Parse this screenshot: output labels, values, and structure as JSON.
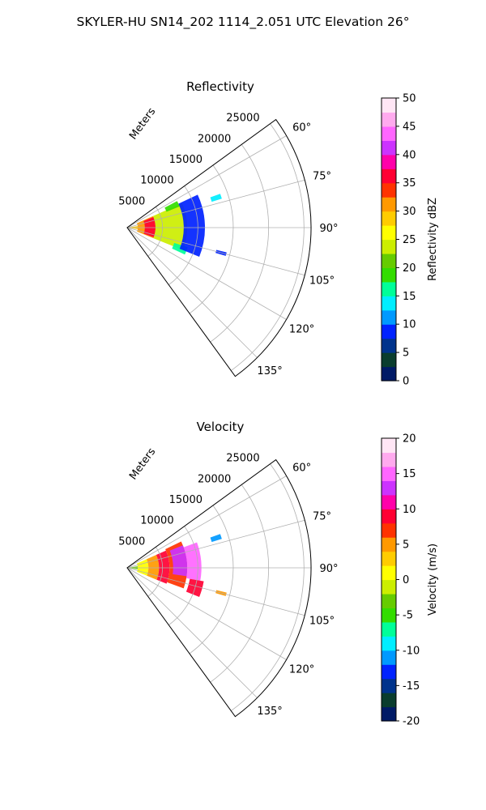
{
  "figure": {
    "suptitle": "SKYLER-HU  SN14_202  1114_2.051 UTC Elevation 26°"
  },
  "chart_data": [
    {
      "type": "polar-sector",
      "title": "Reflectivity",
      "radial_label": "Meters",
      "radial_ticks": [
        "5000",
        "10000",
        "15000",
        "20000",
        "25000"
      ],
      "r_max": 26000,
      "theta_range_deg": [
        54,
        144
      ],
      "angle_ticks": [
        {
          "deg": 60,
          "label": "60°"
        },
        {
          "deg": 75,
          "label": "75°"
        },
        {
          "deg": 90,
          "label": "90°"
        },
        {
          "deg": 105,
          "label": "105°"
        },
        {
          "deg": 120,
          "label": "120°"
        },
        {
          "deg": 135,
          "label": "135°"
        }
      ],
      "colorbar": {
        "label": "Reflectivity dBZ",
        "ticks": [
          "0",
          "5",
          "10",
          "15",
          "20",
          "25",
          "30",
          "35",
          "40",
          "45",
          "50"
        ],
        "min": 0,
        "max": 50,
        "stops": [
          "#001a66",
          "#0a3d2e",
          "#00338c",
          "#0022ff",
          "#0099ff",
          "#00eeff",
          "#00ff99",
          "#33dd00",
          "#66cc00",
          "#ccee00",
          "#ffff00",
          "#ffcc00",
          "#ff9900",
          "#ff3300",
          "#ff0033",
          "#ff00aa",
          "#cc33ff",
          "#ff66ff",
          "#ffaaee",
          "#ffe6f5"
        ]
      },
      "echo_bands": [
        {
          "r0": 0,
          "r1": 1500,
          "a0": 82,
          "a1": 98,
          "value": 28
        },
        {
          "r0": 1500,
          "r1": 4000,
          "a0": 66,
          "a1": 112,
          "value": 30
        },
        {
          "r0": 2500,
          "r1": 4000,
          "a0": 68,
          "a1": 110,
          "value": 36
        },
        {
          "r0": 4000,
          "r1": 8500,
          "a0": 66,
          "a1": 112,
          "value": 23
        },
        {
          "r0": 6000,
          "r1": 8000,
          "a0": 62,
          "a1": 68,
          "value": 18
        },
        {
          "r0": 7000,
          "r1": 9000,
          "a0": 108,
          "a1": 115,
          "value": 17
        },
        {
          "r0": 8000,
          "r1": 11000,
          "a0": 65,
          "a1": 112,
          "value": 9
        },
        {
          "r0": 12500,
          "r1": 14000,
          "a0": 70,
          "a1": 73,
          "value": 14
        },
        {
          "r0": 13000,
          "r1": 14500,
          "a0": 104,
          "a1": 106,
          "value": 9
        }
      ]
    },
    {
      "type": "polar-sector",
      "title": "Velocity",
      "radial_label": "Meters",
      "radial_ticks": [
        "5000",
        "10000",
        "15000",
        "20000",
        "25000"
      ],
      "r_max": 26000,
      "theta_range_deg": [
        54,
        144
      ],
      "angle_ticks": [
        {
          "deg": 60,
          "label": "60°"
        },
        {
          "deg": 75,
          "label": "75°"
        },
        {
          "deg": 90,
          "label": "90°"
        },
        {
          "deg": 105,
          "label": "105°"
        },
        {
          "deg": 120,
          "label": "120°"
        },
        {
          "deg": 135,
          "label": "135°"
        }
      ],
      "colorbar": {
        "label": "Velocity (m/s)",
        "ticks": [
          "-20",
          "-15",
          "-10",
          "-5",
          "0",
          "5",
          "10",
          "15",
          "20"
        ],
        "min": -20,
        "max": 20,
        "stops": [
          "#001a66",
          "#0a3d2e",
          "#00338c",
          "#0022ff",
          "#0099ff",
          "#00eeff",
          "#00ff99",
          "#33dd00",
          "#66cc00",
          "#ccee00",
          "#ffff00",
          "#ffcc00",
          "#ff9900",
          "#ff3300",
          "#ff0033",
          "#ff00aa",
          "#cc33ff",
          "#ff66ff",
          "#ffaaee",
          "#ffe6f5"
        ]
      },
      "echo_bands": [
        {
          "r0": 0,
          "r1": 1500,
          "a0": 82,
          "a1": 98,
          "value": -3
        },
        {
          "r0": 1500,
          "r1": 3000,
          "a0": 66,
          "a1": 112,
          "value": 0
        },
        {
          "r0": 3000,
          "r1": 4500,
          "a0": 66,
          "a1": 112,
          "value": 5
        },
        {
          "r0": 4500,
          "r1": 6000,
          "a0": 66,
          "a1": 112,
          "value": 8
        },
        {
          "r0": 6000,
          "r1": 8500,
          "a0": 64,
          "a1": 110,
          "value": 6
        },
        {
          "r0": 6500,
          "r1": 8500,
          "a0": 68,
          "a1": 98,
          "value": 12
        },
        {
          "r0": 8500,
          "r1": 10500,
          "a0": 70,
          "a1": 100,
          "value": 14
        },
        {
          "r0": 9000,
          "r1": 11000,
          "a0": 100,
          "a1": 112,
          "value": 9
        },
        {
          "r0": 12500,
          "r1": 14000,
          "a0": 70,
          "a1": 73,
          "value": -12
        },
        {
          "r0": 13000,
          "r1": 14500,
          "a0": 104,
          "a1": 106,
          "value": 5
        }
      ]
    }
  ]
}
